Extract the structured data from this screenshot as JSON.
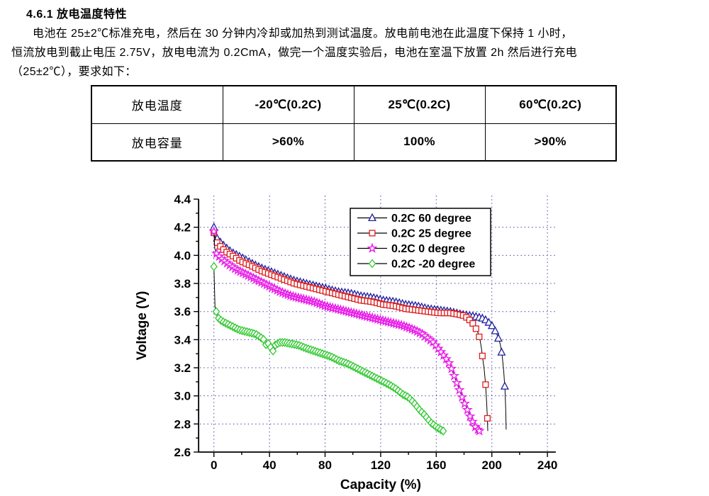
{
  "document": {
    "section_title": "4.6.1  放电温度特性",
    "paragraph_lines": [
      "电池在 25±2℃标准充电，然后在 30 分钟内冷却或加热到测试温度。放电前电池在此温度下保持 1 小时，",
      "恒流放电到截止电压 2.75V，放电电流为 0.2CmA，做完一个温度实验后，电池在室温下放置 2h 然后进行充电",
      "（25±2℃），要求如下："
    ]
  },
  "table": {
    "rows": [
      [
        "放电温度",
        "-20℃(0.2C)",
        "25℃(0.2C)",
        "60℃(0.2C)"
      ],
      [
        "放电容量",
        ">60%",
        "100%",
        ">90%"
      ]
    ]
  },
  "chart_data": {
    "type": "line",
    "title": "",
    "xlabel": "Capacity (%)",
    "ylabel": "Voltage (V)",
    "xlim": [
      -11,
      246
    ],
    "ylim": [
      2.6,
      4.4
    ],
    "x_ticks": {
      "major_start": 0,
      "major_end": 240,
      "major_step": 40,
      "minor_step": 20
    },
    "y_ticks": {
      "major_start": 2.6,
      "major_end": 4.4,
      "major_step": 0.2,
      "minor_step": 0.1
    },
    "grid": {
      "show": true,
      "color": "#3a3a99",
      "x_lines": [
        0,
        40,
        80,
        120,
        160,
        200,
        240
      ],
      "y_lines": [
        2.8,
        3.0,
        3.2,
        3.4,
        3.6,
        3.8,
        4.0,
        4.2
      ]
    },
    "line_color": "#000000",
    "legend": {
      "position": "top-right-inside"
    },
    "series": [
      {
        "name": "0.2C  60 degree",
        "color": "#1f1fa0",
        "marker": "triangle",
        "marker_step": 2.3,
        "points": [
          [
            0,
            4.2
          ],
          [
            1.5,
            4.13
          ],
          [
            4,
            4.1
          ],
          [
            8,
            4.06
          ],
          [
            13,
            4.02
          ],
          [
            19,
            3.99
          ],
          [
            26,
            3.95
          ],
          [
            34,
            3.91
          ],
          [
            42,
            3.88
          ],
          [
            50,
            3.85
          ],
          [
            58,
            3.82
          ],
          [
            66,
            3.8
          ],
          [
            74,
            3.78
          ],
          [
            82,
            3.76
          ],
          [
            90,
            3.74
          ],
          [
            98,
            3.73
          ],
          [
            106,
            3.71
          ],
          [
            114,
            3.7
          ],
          [
            122,
            3.68
          ],
          [
            130,
            3.67
          ],
          [
            138,
            3.65
          ],
          [
            146,
            3.64
          ],
          [
            154,
            3.62
          ],
          [
            162,
            3.61
          ],
          [
            170,
            3.6
          ],
          [
            178,
            3.58
          ],
          [
            185,
            3.57
          ],
          [
            190,
            3.56
          ],
          [
            194,
            3.55
          ],
          [
            197,
            3.53
          ],
          [
            200,
            3.5
          ],
          [
            202,
            3.47
          ],
          [
            204,
            3.43
          ],
          [
            206,
            3.37
          ],
          [
            207.5,
            3.28
          ],
          [
            208.5,
            3.18
          ],
          [
            209.5,
            3.04
          ],
          [
            210,
            2.9
          ],
          [
            210.3,
            2.76
          ]
        ],
        "extra_markers": []
      },
      {
        "name": "0.2C  25 degree",
        "color": "#dd1c1c",
        "marker": "square",
        "marker_step": 2.3,
        "points": [
          [
            0,
            4.16
          ],
          [
            1.5,
            4.1
          ],
          [
            4,
            4.07
          ],
          [
            8,
            4.03
          ],
          [
            13,
            4.0
          ],
          [
            19,
            3.96
          ],
          [
            26,
            3.93
          ],
          [
            34,
            3.89
          ],
          [
            42,
            3.86
          ],
          [
            50,
            3.83
          ],
          [
            58,
            3.8
          ],
          [
            66,
            3.78
          ],
          [
            74,
            3.76
          ],
          [
            82,
            3.74
          ],
          [
            90,
            3.72
          ],
          [
            98,
            3.7
          ],
          [
            106,
            3.68
          ],
          [
            114,
            3.67
          ],
          [
            122,
            3.65
          ],
          [
            130,
            3.64
          ],
          [
            138,
            3.62
          ],
          [
            146,
            3.61
          ],
          [
            154,
            3.6
          ],
          [
            162,
            3.59
          ],
          [
            170,
            3.59
          ],
          [
            176,
            3.58
          ],
          [
            180,
            3.57
          ],
          [
            183,
            3.55
          ],
          [
            186,
            3.52
          ],
          [
            188,
            3.49
          ],
          [
            190,
            3.45
          ],
          [
            191.5,
            3.4
          ],
          [
            192.5,
            3.34
          ],
          [
            193.5,
            3.26
          ],
          [
            194.5,
            3.19
          ],
          [
            195.5,
            3.08
          ],
          [
            196.3,
            2.95
          ],
          [
            196.8,
            2.84
          ],
          [
            197.1,
            2.75
          ]
        ],
        "extra_markers": [
          [
            196.8,
            2.84
          ]
        ]
      },
      {
        "name": "0.2C  0  degree",
        "color": "#e816e8",
        "marker": "star",
        "marker_step": 1.9,
        "points": [
          [
            0,
            4.17
          ],
          [
            0.6,
            4.05
          ],
          [
            2,
            4.01
          ],
          [
            5,
            3.98
          ],
          [
            10,
            3.94
          ],
          [
            16,
            3.9
          ],
          [
            24,
            3.86
          ],
          [
            32,
            3.82
          ],
          [
            40,
            3.78
          ],
          [
            48,
            3.74
          ],
          [
            56,
            3.71
          ],
          [
            64,
            3.69
          ],
          [
            72,
            3.67
          ],
          [
            80,
            3.64
          ],
          [
            88,
            3.62
          ],
          [
            96,
            3.6
          ],
          [
            104,
            3.58
          ],
          [
            112,
            3.56
          ],
          [
            120,
            3.54
          ],
          [
            128,
            3.52
          ],
          [
            136,
            3.5
          ],
          [
            144,
            3.47
          ],
          [
            150,
            3.44
          ],
          [
            154,
            3.41
          ],
          [
            158,
            3.38
          ],
          [
            162,
            3.33
          ],
          [
            166,
            3.28
          ],
          [
            170,
            3.22
          ],
          [
            173,
            3.14
          ],
          [
            176,
            3.06
          ],
          [
            179,
            2.98
          ],
          [
            182,
            2.91
          ],
          [
            184,
            2.86
          ],
          [
            186,
            2.82
          ],
          [
            188,
            2.78
          ],
          [
            190,
            2.76
          ],
          [
            191,
            2.75
          ]
        ],
        "extra_markers": [
          [
            191,
            2.75
          ]
        ]
      },
      {
        "name": "0.2C -20 degree",
        "color": "#2fc82f",
        "marker": "diamond",
        "marker_step": 1.7,
        "points": [
          [
            0,
            3.92
          ],
          [
            0.8,
            3.63
          ],
          [
            2,
            3.59
          ],
          [
            3.5,
            3.55
          ],
          [
            6,
            3.53
          ],
          [
            10,
            3.51
          ],
          [
            14,
            3.49
          ],
          [
            18,
            3.47
          ],
          [
            22,
            3.46
          ],
          [
            26,
            3.45
          ],
          [
            30,
            3.44
          ],
          [
            33,
            3.42
          ],
          [
            36,
            3.4
          ],
          [
            38,
            3.35
          ],
          [
            39.5,
            3.38
          ],
          [
            41,
            3.34
          ],
          [
            42.5,
            3.32
          ],
          [
            44,
            3.36
          ],
          [
            47,
            3.38
          ],
          [
            51,
            3.38
          ],
          [
            56,
            3.37
          ],
          [
            61,
            3.36
          ],
          [
            66,
            3.34
          ],
          [
            72,
            3.32
          ],
          [
            78,
            3.3
          ],
          [
            84,
            3.28
          ],
          [
            90,
            3.25
          ],
          [
            96,
            3.23
          ],
          [
            102,
            3.2
          ],
          [
            108,
            3.17
          ],
          [
            114,
            3.14
          ],
          [
            120,
            3.11
          ],
          [
            126,
            3.08
          ],
          [
            131,
            3.05
          ],
          [
            136,
            3.01
          ],
          [
            140,
            2.99
          ],
          [
            144,
            2.95
          ],
          [
            148,
            2.9
          ],
          [
            152,
            2.86
          ],
          [
            156,
            2.81
          ],
          [
            160,
            2.78
          ],
          [
            163,
            2.76
          ],
          [
            165,
            2.75
          ]
        ],
        "extra_markers": [
          [
            165,
            2.75
          ]
        ]
      }
    ]
  }
}
